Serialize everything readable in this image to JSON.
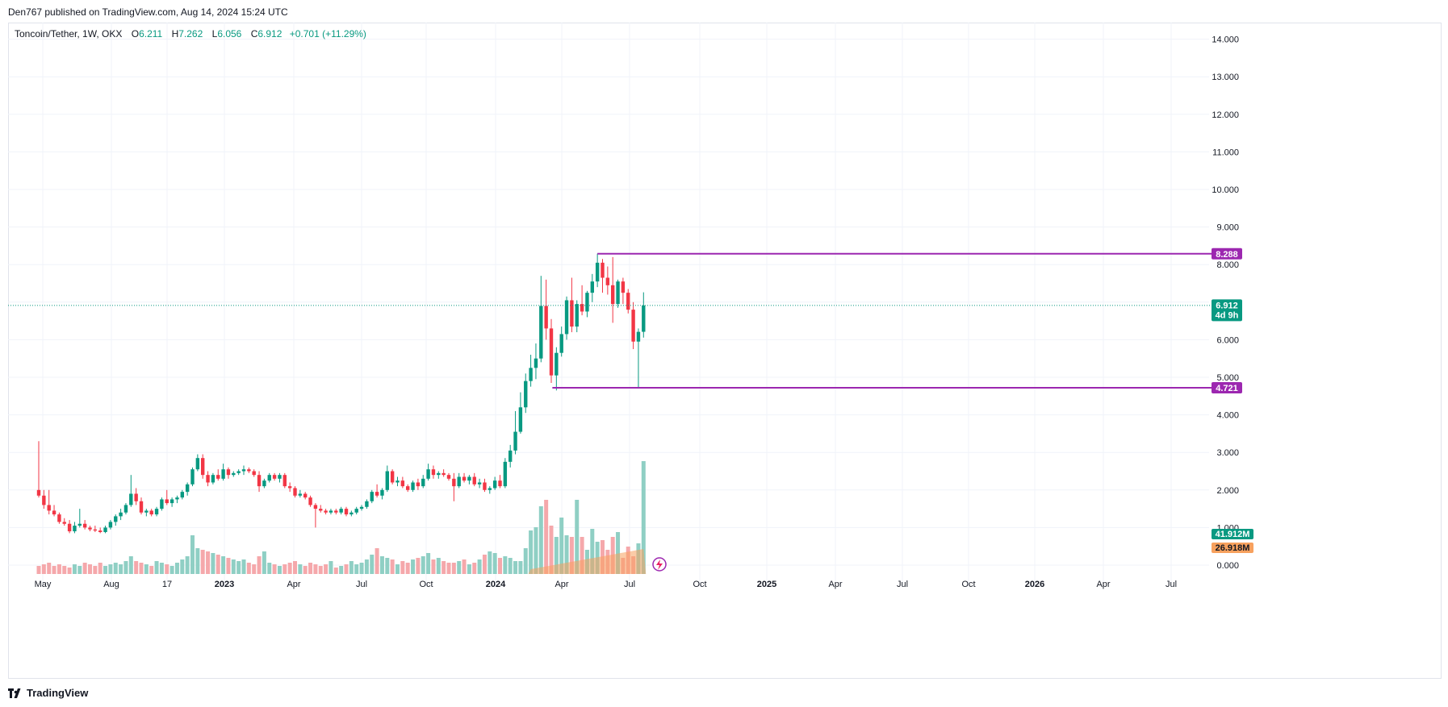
{
  "header": {
    "publisher": "Den767 published on TradingView.com, Aug 14, 2024 15:24 UTC"
  },
  "legend": {
    "symbol": "Toncoin/Tether, 1W, OKX",
    "open_label": "O",
    "open": "6.211",
    "high_label": "H",
    "high": "7.262",
    "low_label": "L",
    "low": "6.056",
    "close_label": "C",
    "close": "6.912",
    "change": "+0.701 (+11.29%)"
  },
  "footer": {
    "brand": "TradingView"
  },
  "colors": {
    "up": "#089981",
    "down": "#f23645",
    "up_vol": "#8fcfc4",
    "down_vol": "#f5a8ab",
    "level": "#9c27b0",
    "grid": "#f0f3fa",
    "avg_vol": "#f7a15e"
  },
  "chart_data": {
    "type": "candlestick",
    "timeframe": "1W",
    "ylim": [
      0,
      14.5
    ],
    "y_ticks": [
      "14.000",
      "13.000",
      "12.000",
      "11.000",
      "10.000",
      "9.000",
      "8.000",
      "7.000",
      "6.000",
      "5.000",
      "4.000",
      "3.000",
      "2.000",
      "1.000",
      "0.000"
    ],
    "x_ticks": [
      {
        "label": "May",
        "bold": false
      },
      {
        "label": "Aug",
        "bold": false
      },
      {
        "label": "17",
        "bold": false
      },
      {
        "label": "2023",
        "bold": true
      },
      {
        "label": "Apr",
        "bold": false
      },
      {
        "label": "Jul",
        "bold": false
      },
      {
        "label": "Oct",
        "bold": false
      },
      {
        "label": "2024",
        "bold": true
      },
      {
        "label": "Apr",
        "bold": false
      },
      {
        "label": "Jul",
        "bold": false
      },
      {
        "label": "Oct",
        "bold": false
      },
      {
        "label": "2025",
        "bold": true
      },
      {
        "label": "Apr",
        "bold": false
      },
      {
        "label": "Jul",
        "bold": false
      },
      {
        "label": "Oct",
        "bold": false
      },
      {
        "label": "2026",
        "bold": true
      },
      {
        "label": "Apr",
        "bold": false
      },
      {
        "label": "Jul",
        "bold": false
      }
    ],
    "ohlc": [
      [
        2.0,
        3.3,
        1.8,
        1.85
      ],
      [
        1.85,
        2.0,
        1.5,
        1.6
      ],
      [
        1.6,
        2.0,
        1.35,
        1.45
      ],
      [
        1.45,
        1.6,
        1.3,
        1.35
      ],
      [
        1.35,
        1.4,
        1.1,
        1.15
      ],
      [
        1.15,
        1.25,
        1.05,
        1.1
      ],
      [
        1.1,
        1.2,
        0.85,
        0.9
      ],
      [
        0.9,
        1.15,
        0.85,
        1.05
      ],
      [
        1.05,
        1.5,
        1.0,
        1.1
      ],
      [
        1.1,
        1.2,
        0.95,
        1.0
      ],
      [
        1.0,
        1.05,
        0.9,
        0.95
      ],
      [
        0.95,
        1.05,
        0.88,
        0.92
      ],
      [
        0.92,
        1.0,
        0.85,
        0.88
      ],
      [
        0.88,
        1.05,
        0.85,
        1.0
      ],
      [
        1.0,
        1.2,
        0.95,
        1.15
      ],
      [
        1.15,
        1.35,
        1.05,
        1.3
      ],
      [
        1.3,
        1.5,
        1.2,
        1.4
      ],
      [
        1.4,
        1.65,
        1.35,
        1.6
      ],
      [
        1.6,
        2.4,
        1.55,
        1.9
      ],
      [
        1.9,
        2.05,
        1.6,
        1.7
      ],
      [
        1.7,
        1.8,
        1.35,
        1.4
      ],
      [
        1.4,
        1.5,
        1.3,
        1.45
      ],
      [
        1.45,
        1.5,
        1.3,
        1.35
      ],
      [
        1.35,
        1.55,
        1.3,
        1.5
      ],
      [
        1.5,
        1.8,
        1.45,
        1.75
      ],
      [
        1.75,
        2.0,
        1.6,
        1.65
      ],
      [
        1.65,
        1.8,
        1.55,
        1.75
      ],
      [
        1.75,
        1.85,
        1.65,
        1.8
      ],
      [
        1.8,
        2.0,
        1.75,
        1.95
      ],
      [
        1.95,
        2.2,
        1.85,
        2.15
      ],
      [
        2.15,
        2.6,
        2.1,
        2.55
      ],
      [
        2.55,
        2.95,
        2.5,
        2.85
      ],
      [
        2.85,
        2.95,
        2.3,
        2.4
      ],
      [
        2.4,
        2.5,
        2.1,
        2.2
      ],
      [
        2.2,
        2.45,
        2.15,
        2.4
      ],
      [
        2.4,
        2.55,
        2.25,
        2.3
      ],
      [
        2.3,
        2.7,
        2.25,
        2.55
      ],
      [
        2.55,
        2.6,
        2.3,
        2.4
      ],
      [
        2.4,
        2.5,
        2.35,
        2.45
      ],
      [
        2.45,
        2.55,
        2.4,
        2.5
      ],
      [
        2.5,
        2.65,
        2.4,
        2.55
      ],
      [
        2.55,
        2.6,
        2.45,
        2.5
      ],
      [
        2.5,
        2.55,
        2.35,
        2.4
      ],
      [
        2.4,
        2.5,
        1.95,
        2.1
      ],
      [
        2.1,
        2.3,
        2.05,
        2.25
      ],
      [
        2.25,
        2.45,
        2.2,
        2.4
      ],
      [
        2.4,
        2.45,
        2.25,
        2.3
      ],
      [
        2.3,
        2.45,
        2.2,
        2.4
      ],
      [
        2.4,
        2.45,
        2.05,
        2.1
      ],
      [
        2.1,
        2.2,
        1.95,
        2.05
      ],
      [
        2.05,
        2.1,
        1.8,
        1.85
      ],
      [
        1.85,
        2.0,
        1.8,
        1.9
      ],
      [
        1.9,
        1.95,
        1.75,
        1.8
      ],
      [
        1.8,
        1.85,
        1.55,
        1.6
      ],
      [
        1.6,
        1.65,
        1.0,
        1.5
      ],
      [
        1.5,
        1.6,
        1.4,
        1.45
      ],
      [
        1.45,
        1.5,
        1.35,
        1.4
      ],
      [
        1.4,
        1.5,
        1.35,
        1.45
      ],
      [
        1.45,
        1.5,
        1.35,
        1.4
      ],
      [
        1.4,
        1.55,
        1.35,
        1.5
      ],
      [
        1.5,
        1.55,
        1.3,
        1.35
      ],
      [
        1.35,
        1.45,
        1.3,
        1.4
      ],
      [
        1.4,
        1.55,
        1.35,
        1.5
      ],
      [
        1.5,
        1.6,
        1.45,
        1.55
      ],
      [
        1.55,
        1.75,
        1.5,
        1.7
      ],
      [
        1.7,
        2.0,
        1.65,
        1.95
      ],
      [
        1.95,
        2.15,
        1.8,
        1.85
      ],
      [
        1.85,
        2.05,
        1.75,
        2.0
      ],
      [
        2.0,
        2.65,
        1.95,
        2.5
      ],
      [
        2.5,
        2.55,
        2.15,
        2.2
      ],
      [
        2.2,
        2.35,
        2.1,
        2.25
      ],
      [
        2.25,
        2.35,
        2.05,
        2.1
      ],
      [
        2.1,
        2.15,
        1.95,
        2.0
      ],
      [
        2.0,
        2.25,
        1.95,
        2.2
      ],
      [
        2.2,
        2.3,
        2.0,
        2.1
      ],
      [
        2.1,
        2.4,
        2.05,
        2.3
      ],
      [
        2.3,
        2.7,
        2.25,
        2.55
      ],
      [
        2.55,
        2.65,
        2.3,
        2.4
      ],
      [
        2.4,
        2.5,
        2.3,
        2.45
      ],
      [
        2.45,
        2.55,
        2.35,
        2.4
      ],
      [
        2.4,
        2.45,
        2.25,
        2.3
      ],
      [
        2.3,
        2.45,
        1.7,
        2.1
      ],
      [
        2.1,
        2.45,
        2.05,
        2.35
      ],
      [
        2.35,
        2.45,
        2.2,
        2.25
      ],
      [
        2.25,
        2.4,
        2.15,
        2.35
      ],
      [
        2.35,
        2.45,
        2.1,
        2.15
      ],
      [
        2.15,
        2.3,
        2.05,
        2.2
      ],
      [
        2.2,
        2.3,
        1.95,
        2.0
      ],
      [
        2.0,
        2.1,
        1.9,
        2.05
      ],
      [
        2.05,
        2.35,
        2.0,
        2.25
      ],
      [
        2.25,
        2.4,
        2.05,
        2.1
      ],
      [
        2.1,
        2.85,
        2.05,
        2.75
      ],
      [
        2.75,
        3.2,
        2.6,
        3.05
      ],
      [
        3.05,
        4.1,
        2.95,
        3.55
      ],
      [
        3.55,
        4.6,
        3.5,
        4.2
      ],
      [
        4.2,
        5.1,
        4.05,
        4.9
      ],
      [
        4.9,
        5.6,
        4.75,
        5.25
      ],
      [
        5.25,
        5.9,
        4.95,
        5.5
      ],
      [
        5.5,
        7.7,
        5.4,
        6.9
      ],
      [
        6.9,
        7.6,
        6.0,
        6.3
      ],
      [
        6.3,
        6.55,
        4.85,
        5.05
      ],
      [
        5.05,
        5.8,
        4.65,
        5.65
      ],
      [
        5.65,
        6.35,
        5.55,
        6.15
      ],
      [
        6.15,
        7.15,
        6.0,
        7.05
      ],
      [
        7.05,
        7.65,
        6.2,
        6.35
      ],
      [
        6.35,
        7.05,
        6.2,
        6.95
      ],
      [
        6.95,
        7.45,
        6.65,
        6.75
      ],
      [
        6.75,
        7.3,
        6.6,
        7.25
      ],
      [
        7.25,
        7.75,
        7.0,
        7.55
      ],
      [
        7.55,
        8.29,
        7.4,
        8.05
      ],
      [
        8.05,
        8.15,
        7.25,
        7.65
      ],
      [
        7.65,
        7.95,
        7.2,
        7.45
      ],
      [
        7.45,
        8.2,
        6.45,
        6.95
      ],
      [
        6.95,
        7.6,
        6.85,
        7.55
      ],
      [
        7.55,
        7.65,
        6.95,
        7.25
      ],
      [
        7.25,
        7.35,
        6.7,
        6.8
      ],
      [
        6.8,
        7.0,
        5.75,
        5.95
      ],
      [
        5.95,
        6.3,
        4.72,
        6.21
      ],
      [
        6.211,
        7.262,
        6.056,
        6.912
      ]
    ],
    "volume_relative": [
      0.05,
      0.06,
      0.07,
      0.05,
      0.06,
      0.05,
      0.04,
      0.06,
      0.05,
      0.07,
      0.06,
      0.05,
      0.07,
      0.05,
      0.06,
      0.07,
      0.06,
      0.08,
      0.11,
      0.08,
      0.07,
      0.06,
      0.05,
      0.08,
      0.07,
      0.06,
      0.05,
      0.07,
      0.09,
      0.11,
      0.24,
      0.16,
      0.15,
      0.14,
      0.13,
      0.12,
      0.11,
      0.1,
      0.09,
      0.08,
      0.09,
      0.07,
      0.06,
      0.11,
      0.14,
      0.07,
      0.06,
      0.05,
      0.06,
      0.07,
      0.08,
      0.06,
      0.05,
      0.07,
      0.06,
      0.05,
      0.06,
      0.08,
      0.04,
      0.05,
      0.06,
      0.08,
      0.06,
      0.07,
      0.09,
      0.12,
      0.16,
      0.11,
      0.1,
      0.09,
      0.06,
      0.08,
      0.07,
      0.09,
      0.1,
      0.11,
      0.13,
      0.09,
      0.1,
      0.08,
      0.07,
      0.07,
      0.08,
      0.09,
      0.06,
      0.07,
      0.09,
      0.12,
      0.14,
      0.13,
      0.1,
      0.11,
      0.1,
      0.08,
      0.08,
      0.16,
      0.27,
      0.29,
      0.42,
      0.46,
      0.3,
      0.23,
      0.35,
      0.24,
      0.23,
      0.46,
      0.23,
      0.15,
      0.28,
      0.2,
      0.21,
      0.15,
      0.23,
      0.26,
      0.1,
      0.17,
      0.11,
      0.19,
      0.7,
      0.11
    ],
    "levels": [
      {
        "value": 8.288,
        "label": "8.288"
      },
      {
        "value": 4.721,
        "label": "4.721"
      }
    ],
    "current_price": {
      "value": 6.912,
      "label": "6.912",
      "countdown": "4d 9h"
    },
    "volume_labels": {
      "volume": "41.912M",
      "average": "26.918M"
    }
  }
}
